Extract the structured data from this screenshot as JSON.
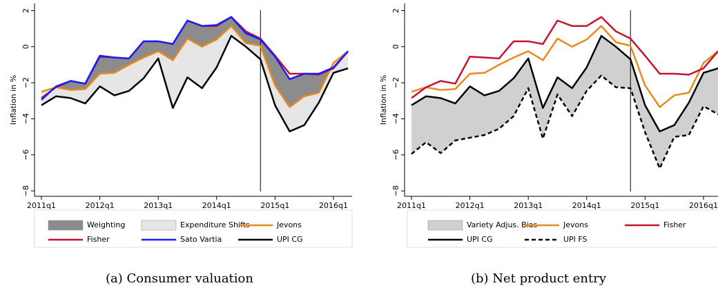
{
  "chart_data": [
    {
      "type": "line",
      "caption": "(a) Consumer valuation",
      "ylabel": "Inflation in %",
      "categories": [
        "2011q1",
        null,
        null,
        null,
        "2012q1",
        null,
        null,
        null,
        "2013q1",
        null,
        null,
        null,
        "2014q1",
        null,
        null,
        null,
        "2015q1",
        null,
        null,
        null,
        "2016q1",
        null
      ],
      "ylim": [
        -8.3,
        2.4
      ],
      "yticks": [
        {
          "value": -8,
          "label": "−8"
        },
        {
          "value": -6,
          "label": "−6"
        },
        {
          "value": -4,
          "label": "−4"
        },
        {
          "value": -2,
          "label": "−2"
        },
        0,
        2
      ],
      "vline_index": 15,
      "series": [
        {
          "name": "Weighting",
          "color": "#8c8c8c",
          "kind": "area",
          "between": [
            "Sato Vartia",
            "Jevons"
          ]
        },
        {
          "name": "Expenditure Shifts",
          "color": "#e6e6e6",
          "kind": "area",
          "between": [
            "Jevons",
            "UPI CG"
          ]
        },
        {
          "name": "Jevons",
          "color": "#e8891a",
          "values": [
            -2.5,
            -2.25,
            -2.4,
            -2.35,
            -1.5,
            -1.45,
            -1.0,
            -0.6,
            -0.25,
            -0.75,
            0.45,
            0.0,
            0.4,
            1.15,
            0.2,
            0.05,
            -2.15,
            -3.35,
            -2.75,
            -2.55,
            -0.9,
            -0.25
          ]
        },
        {
          "name": "Fisher",
          "color": "#c8102e",
          "values": [
            -2.85,
            -2.25,
            -1.9,
            -2.05,
            -0.55,
            -0.6,
            -0.65,
            0.3,
            0.3,
            0.15,
            1.45,
            1.15,
            1.15,
            1.65,
            0.85,
            0.45,
            -0.5,
            -1.5,
            -1.5,
            -1.55,
            -1.2,
            -0.25
          ]
        },
        {
          "name": "Sato Vartia",
          "color": "#1a1aff",
          "values": [
            -2.95,
            -2.2,
            -1.9,
            -2.05,
            -0.5,
            -0.6,
            -0.65,
            0.3,
            0.3,
            0.15,
            1.45,
            1.15,
            1.2,
            1.65,
            0.75,
            0.4,
            -0.55,
            -1.8,
            -1.5,
            -1.5,
            -1.15,
            -0.25
          ]
        },
        {
          "name": "UPI CG",
          "color": "#000000",
          "values": [
            -3.25,
            -2.75,
            -2.85,
            -3.15,
            -2.2,
            -2.7,
            -2.45,
            -1.75,
            -0.65,
            -3.4,
            -1.7,
            -2.3,
            -1.15,
            0.6,
            0.0,
            -0.7,
            -3.25,
            -4.7,
            -4.35,
            -3.1,
            -1.45,
            -1.2
          ]
        }
      ]
    },
    {
      "type": "line",
      "caption": "(b) Net product entry",
      "ylabel": "Inflation in %",
      "categories": [
        "2011q1",
        null,
        null,
        null,
        "2012q1",
        null,
        null,
        null,
        "2013q1",
        null,
        null,
        null,
        "2014q1",
        null,
        null,
        null,
        "2015q1",
        null,
        null,
        null,
        "2016q1",
        null
      ],
      "ylim": [
        -8.3,
        2.4
      ],
      "yticks": [
        {
          "value": -8,
          "label": "−8"
        },
        {
          "value": -6,
          "label": "−6"
        },
        {
          "value": -4,
          "label": "−4"
        },
        {
          "value": -2,
          "label": "−2"
        },
        0,
        2
      ],
      "vline_index": 15,
      "series": [
        {
          "name": "Variety Adjus. Bias",
          "color": "#d0d0d0",
          "kind": "area",
          "between": [
            "UPI CG",
            "UPI FS"
          ]
        },
        {
          "name": "Jevons",
          "color": "#e8891a",
          "values": [
            -2.5,
            -2.25,
            -2.4,
            -2.35,
            -1.5,
            -1.45,
            -1.0,
            -0.6,
            -0.25,
            -0.75,
            0.45,
            0.0,
            0.4,
            1.15,
            0.25,
            0.05,
            -2.15,
            -3.35,
            -2.7,
            -2.55,
            -0.9,
            -0.25
          ]
        },
        {
          "name": "Fisher",
          "color": "#c8102e",
          "values": [
            -2.85,
            -2.25,
            -1.9,
            -2.05,
            -0.55,
            -0.6,
            -0.65,
            0.3,
            0.3,
            0.15,
            1.45,
            1.15,
            1.15,
            1.65,
            0.85,
            0.45,
            -0.5,
            -1.5,
            -1.5,
            -1.55,
            -1.2,
            -0.25
          ]
        },
        {
          "name": "UPI CG",
          "color": "#000000",
          "values": [
            -3.25,
            -2.75,
            -2.85,
            -3.15,
            -2.2,
            -2.7,
            -2.45,
            -1.75,
            -0.65,
            -3.4,
            -1.7,
            -2.3,
            -1.15,
            0.6,
            0.0,
            -0.7,
            -3.25,
            -4.7,
            -4.35,
            -3.1,
            -1.45,
            -1.2
          ]
        },
        {
          "name": "UPI FS",
          "color": "#000000",
          "dash": true,
          "values": [
            -5.95,
            -5.3,
            -5.9,
            -5.2,
            -5.05,
            -4.9,
            -4.55,
            -3.85,
            -2.3,
            -5.1,
            -2.65,
            -3.85,
            -2.45,
            -1.6,
            -2.25,
            -2.3,
            -4.75,
            -6.75,
            -5.0,
            -4.9,
            -3.3,
            -3.75
          ]
        }
      ]
    }
  ]
}
